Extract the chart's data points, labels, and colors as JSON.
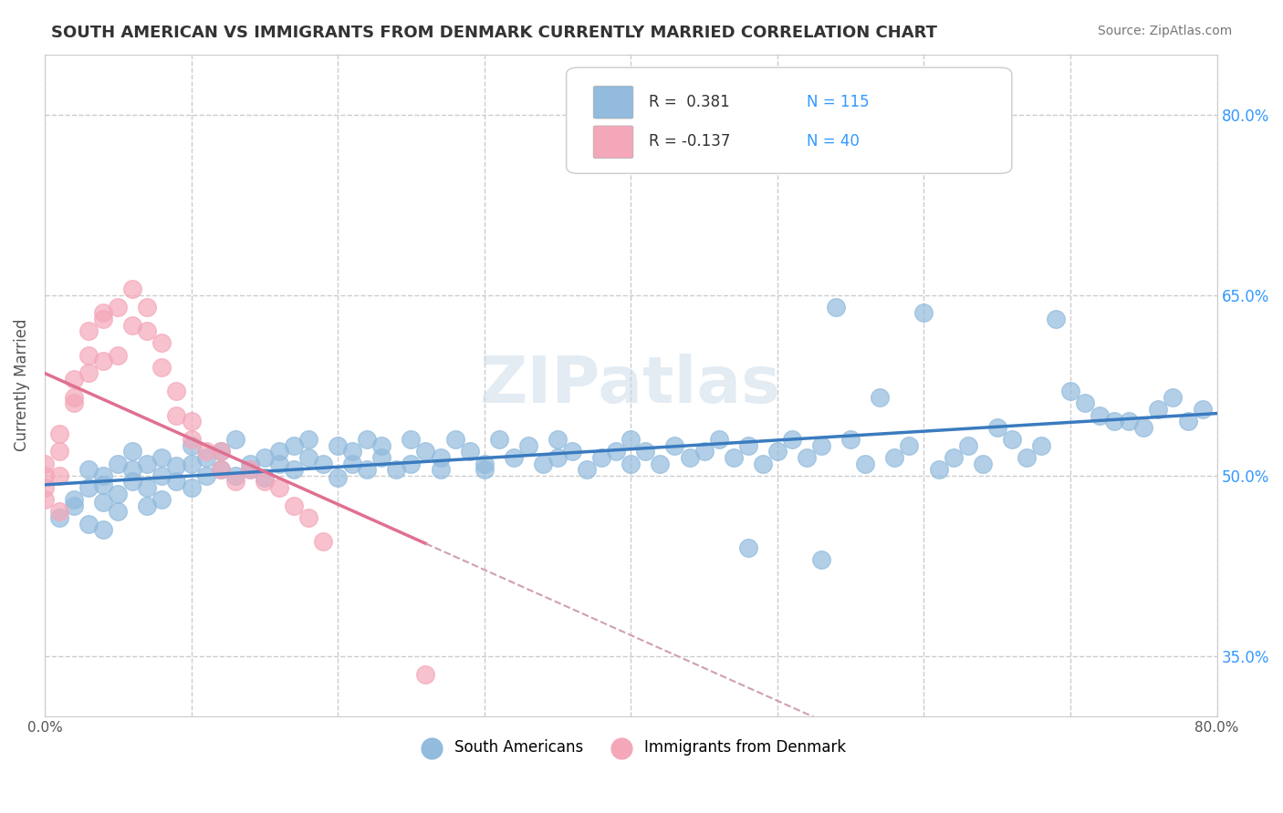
{
  "title": "SOUTH AMERICAN VS IMMIGRANTS FROM DENMARK CURRENTLY MARRIED CORRELATION CHART",
  "source_text": "Source: ZipAtlas.com",
  "ylabel": "Currently Married",
  "xlabel": "",
  "xmin": 0.0,
  "xmax": 0.8,
  "ymin": 0.3,
  "ymax": 0.85,
  "yticks": [
    0.35,
    0.5,
    0.65,
    0.8
  ],
  "ytick_labels": [
    "35.0%",
    "50.0%",
    "65.0%",
    "80.0%"
  ],
  "xticks": [
    0.0,
    0.1,
    0.2,
    0.3,
    0.4,
    0.5,
    0.6,
    0.7,
    0.8
  ],
  "xtick_labels": [
    "0.0%",
    "",
    "",
    "",
    "",
    "",
    "",
    "",
    "80.0%"
  ],
  "blue_color": "#92BBDD",
  "pink_color": "#F4A7B9",
  "blue_line_color": "#3A7BBF",
  "pink_line_color": "#E07090",
  "pink_dashed_color": "#D0A0B0",
  "R_blue": 0.381,
  "N_blue": 115,
  "R_pink": -0.137,
  "N_pink": 40,
  "watermark": "ZIPatlas",
  "legend_label_blue": "South Americans",
  "legend_label_pink": "Immigrants from Denmark",
  "blue_scatter_x": [
    0.01,
    0.02,
    0.02,
    0.03,
    0.03,
    0.03,
    0.04,
    0.04,
    0.04,
    0.04,
    0.05,
    0.05,
    0.05,
    0.06,
    0.06,
    0.06,
    0.07,
    0.07,
    0.07,
    0.08,
    0.08,
    0.08,
    0.09,
    0.09,
    0.1,
    0.1,
    0.1,
    0.11,
    0.11,
    0.12,
    0.12,
    0.13,
    0.13,
    0.14,
    0.14,
    0.15,
    0.15,
    0.16,
    0.16,
    0.17,
    0.17,
    0.18,
    0.18,
    0.19,
    0.2,
    0.2,
    0.21,
    0.21,
    0.22,
    0.22,
    0.23,
    0.23,
    0.24,
    0.25,
    0.25,
    0.26,
    0.27,
    0.27,
    0.28,
    0.29,
    0.3,
    0.3,
    0.31,
    0.32,
    0.33,
    0.34,
    0.35,
    0.35,
    0.36,
    0.37,
    0.38,
    0.39,
    0.4,
    0.4,
    0.41,
    0.42,
    0.43,
    0.44,
    0.45,
    0.46,
    0.47,
    0.48,
    0.49,
    0.5,
    0.51,
    0.52,
    0.53,
    0.55,
    0.56,
    0.58,
    0.59,
    0.6,
    0.62,
    0.63,
    0.64,
    0.65,
    0.66,
    0.67,
    0.68,
    0.7,
    0.71,
    0.72,
    0.74,
    0.75,
    0.76,
    0.77,
    0.78,
    0.79,
    0.54,
    0.57,
    0.61,
    0.69,
    0.73,
    0.53,
    0.48
  ],
  "blue_scatter_y": [
    0.465,
    0.475,
    0.48,
    0.49,
    0.505,
    0.46,
    0.478,
    0.492,
    0.455,
    0.5,
    0.485,
    0.51,
    0.47,
    0.505,
    0.495,
    0.52,
    0.49,
    0.475,
    0.51,
    0.5,
    0.515,
    0.48,
    0.508,
    0.495,
    0.51,
    0.49,
    0.525,
    0.5,
    0.515,
    0.505,
    0.52,
    0.5,
    0.53,
    0.505,
    0.51,
    0.515,
    0.498,
    0.52,
    0.51,
    0.525,
    0.505,
    0.53,
    0.515,
    0.51,
    0.525,
    0.498,
    0.52,
    0.51,
    0.53,
    0.505,
    0.515,
    0.525,
    0.505,
    0.51,
    0.53,
    0.52,
    0.515,
    0.505,
    0.53,
    0.52,
    0.51,
    0.505,
    0.53,
    0.515,
    0.525,
    0.51,
    0.515,
    0.53,
    0.52,
    0.505,
    0.515,
    0.52,
    0.51,
    0.53,
    0.52,
    0.51,
    0.525,
    0.515,
    0.52,
    0.53,
    0.515,
    0.525,
    0.51,
    0.52,
    0.53,
    0.515,
    0.525,
    0.53,
    0.51,
    0.515,
    0.525,
    0.635,
    0.515,
    0.525,
    0.51,
    0.54,
    0.53,
    0.515,
    0.525,
    0.57,
    0.56,
    0.55,
    0.545,
    0.54,
    0.555,
    0.565,
    0.545,
    0.555,
    0.64,
    0.565,
    0.505,
    0.63,
    0.545,
    0.43,
    0.44
  ],
  "pink_scatter_x": [
    0.0,
    0.0,
    0.0,
    0.0,
    0.01,
    0.01,
    0.01,
    0.01,
    0.02,
    0.02,
    0.02,
    0.03,
    0.03,
    0.03,
    0.04,
    0.04,
    0.04,
    0.05,
    0.05,
    0.06,
    0.06,
    0.07,
    0.07,
    0.08,
    0.08,
    0.09,
    0.09,
    0.1,
    0.1,
    0.11,
    0.12,
    0.12,
    0.13,
    0.14,
    0.15,
    0.16,
    0.17,
    0.18,
    0.19,
    0.26
  ],
  "pink_scatter_y": [
    0.48,
    0.49,
    0.5,
    0.51,
    0.47,
    0.5,
    0.52,
    0.535,
    0.56,
    0.565,
    0.58,
    0.585,
    0.6,
    0.62,
    0.635,
    0.595,
    0.63,
    0.64,
    0.6,
    0.625,
    0.655,
    0.64,
    0.62,
    0.59,
    0.61,
    0.55,
    0.57,
    0.53,
    0.545,
    0.52,
    0.505,
    0.52,
    0.495,
    0.505,
    0.495,
    0.49,
    0.475,
    0.465,
    0.445,
    0.335
  ],
  "title_color": "#333333",
  "axis_label_color": "#555555",
  "tick_color": "#555555",
  "source_color": "#777777",
  "r_value_color": "#3399FF",
  "n_value_color": "#3399FF",
  "grid_color": "#CCCCCC",
  "grid_style": "--",
  "background_color": "#FFFFFF"
}
